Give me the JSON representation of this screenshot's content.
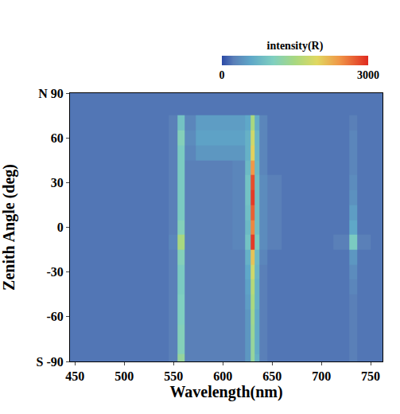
{
  "chart_data": {
    "type": "heatmap",
    "xlabel": "Wavelength(nm)",
    "ylabel": "Zenith Angle (deg)",
    "x": [
      450,
      500,
      540,
      550,
      557.7,
      565,
      580,
      600,
      620,
      626,
      630,
      634,
      640,
      650,
      670,
      700,
      725,
      732,
      740,
      760
    ],
    "y": [
      -90,
      -80,
      -70,
      -60,
      -50,
      -40,
      -30,
      -20,
      -10,
      0,
      10,
      20,
      30,
      40,
      50,
      60,
      70,
      80,
      90
    ],
    "z": [
      [
        200,
        200,
        200,
        250,
        1300,
        250,
        250,
        250,
        250,
        450,
        1300,
        700,
        250,
        200,
        200,
        200,
        200,
        250,
        200,
        200
      ],
      [
        200,
        200,
        200,
        250,
        1100,
        250,
        250,
        250,
        250,
        450,
        1300,
        650,
        250,
        200,
        200,
        200,
        200,
        250,
        200,
        200
      ],
      [
        200,
        200,
        200,
        250,
        1100,
        250,
        250,
        250,
        250,
        450,
        1350,
        650,
        250,
        200,
        200,
        200,
        200,
        250,
        200,
        200
      ],
      [
        200,
        200,
        200,
        250,
        1050,
        250,
        250,
        250,
        250,
        450,
        1400,
        650,
        250,
        200,
        200,
        200,
        200,
        250,
        200,
        200
      ],
      [
        200,
        200,
        200,
        250,
        1050,
        250,
        250,
        250,
        250,
        500,
        1500,
        700,
        250,
        200,
        200,
        200,
        200,
        250,
        200,
        200
      ],
      [
        200,
        200,
        200,
        250,
        1000,
        250,
        250,
        250,
        250,
        550,
        1600,
        700,
        250,
        200,
        200,
        200,
        200,
        300,
        200,
        200
      ],
      [
        200,
        200,
        200,
        250,
        1000,
        250,
        250,
        250,
        250,
        600,
        1800,
        750,
        250,
        200,
        200,
        200,
        200,
        350,
        200,
        200
      ],
      [
        200,
        200,
        200,
        250,
        1100,
        250,
        250,
        250,
        250,
        700,
        2100,
        800,
        300,
        200,
        200,
        200,
        200,
        450,
        200,
        200
      ],
      [
        200,
        200,
        200,
        300,
        1500,
        250,
        250,
        250,
        300,
        900,
        2900,
        1000,
        350,
        250,
        200,
        200,
        250,
        1000,
        250,
        200
      ],
      [
        200,
        200,
        200,
        250,
        1100,
        250,
        250,
        250,
        300,
        800,
        2500,
        850,
        350,
        250,
        200,
        200,
        200,
        600,
        200,
        200
      ],
      [
        200,
        200,
        200,
        250,
        1000,
        250,
        250,
        250,
        300,
        850,
        2700,
        850,
        350,
        250,
        200,
        200,
        200,
        500,
        200,
        200
      ],
      [
        200,
        200,
        200,
        250,
        1000,
        250,
        250,
        250,
        300,
        900,
        2900,
        850,
        350,
        250,
        200,
        200,
        200,
        400,
        200,
        200
      ],
      [
        200,
        200,
        200,
        250,
        1000,
        250,
        250,
        250,
        300,
        900,
        2800,
        850,
        350,
        250,
        200,
        200,
        200,
        350,
        200,
        200
      ],
      [
        200,
        200,
        200,
        250,
        1000,
        250,
        250,
        250,
        300,
        800,
        2400,
        800,
        300,
        200,
        200,
        200,
        200,
        300,
        200,
        200
      ],
      [
        200,
        200,
        200,
        250,
        1000,
        300,
        450,
        450,
        450,
        700,
        2000,
        750,
        300,
        200,
        200,
        200,
        200,
        300,
        200,
        200
      ],
      [
        200,
        200,
        200,
        250,
        1100,
        350,
        550,
        550,
        550,
        700,
        1800,
        750,
        300,
        200,
        200,
        200,
        200,
        300,
        200,
        200
      ],
      [
        200,
        200,
        200,
        250,
        900,
        300,
        500,
        500,
        500,
        600,
        1500,
        650,
        300,
        200,
        200,
        200,
        200,
        250,
        200,
        200
      ],
      [
        200,
        200,
        200,
        200,
        200,
        200,
        200,
        200,
        200,
        200,
        200,
        200,
        200,
        200,
        200,
        200,
        200,
        200,
        200,
        200
      ],
      [
        200,
        200,
        200,
        200,
        200,
        200,
        200,
        200,
        200,
        200,
        200,
        200,
        200,
        200,
        200,
        200,
        200,
        200,
        200,
        200
      ]
    ],
    "xlim": [
      445,
      762
    ],
    "xticks": [
      450,
      500,
      550,
      600,
      650,
      700,
      750
    ],
    "ylim": [
      -90,
      90
    ],
    "yticks": [
      {
        "value": -90,
        "label": "S -90"
      },
      -60,
      -30,
      0,
      30,
      60,
      {
        "value": 90,
        "label": "N 90"
      }
    ],
    "colorbar": {
      "title": "intensity(R)",
      "range": [
        0,
        3000
      ],
      "ticks": [
        0,
        3000
      ]
    }
  }
}
